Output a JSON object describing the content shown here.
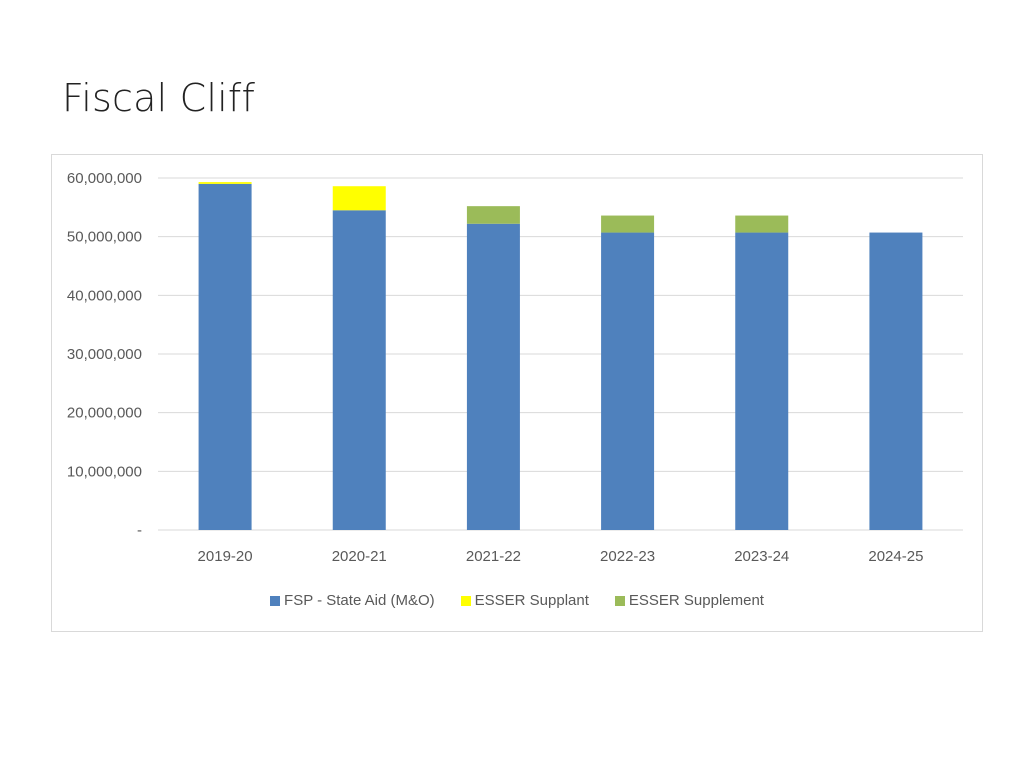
{
  "slide": {
    "title": "Fiscal Cliff"
  },
  "chart_data": {
    "type": "bar",
    "stacked": true,
    "categories": [
      "2019-20",
      "2020-21",
      "2021-22",
      "2022-23",
      "2023-24",
      "2024-25"
    ],
    "series": [
      {
        "name": "FSP - State Aid (M&O)",
        "color": "#4f81bd",
        "values": [
          59000000,
          54500000,
          52200000,
          50700000,
          50700000,
          50700000
        ]
      },
      {
        "name": "ESSER Supplant",
        "color": "#ffff00",
        "values": [
          300000,
          4100000,
          0,
          0,
          0,
          0
        ]
      },
      {
        "name": "ESSER Supplement",
        "color": "#9bbb59",
        "values": [
          0,
          0,
          3000000,
          2900000,
          2900000,
          0
        ]
      }
    ],
    "ylim": [
      0,
      60000000
    ],
    "yticks": [
      0,
      10000000,
      20000000,
      30000000,
      40000000,
      50000000,
      60000000
    ],
    "ytick_labels": [
      "-",
      "10,000,000",
      "20,000,000",
      "30,000,000",
      "40,000,000",
      "50,000,000",
      "60,000,000"
    ],
    "grid": true,
    "legend_position": "bottom"
  }
}
